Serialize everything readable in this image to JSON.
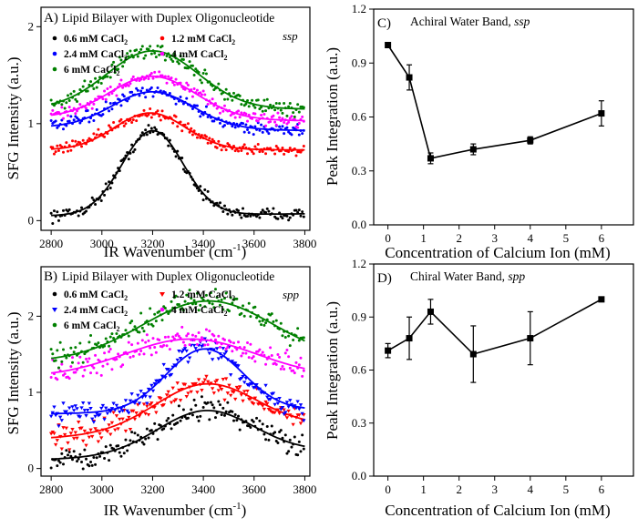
{
  "panels": [
    {
      "id": "A",
      "label": "A)",
      "title": "Lipid Bilayer with Duplex Oligonucleotide",
      "polarization": "ssp",
      "xlabel": "IR Wavenumber (cm",
      "xlabel_sup": "-1",
      "xlabel_tail": ")",
      "ylabel": "SFG Intensity (a.u.)",
      "xticks": [
        "2800",
        "3000",
        "3200",
        "3400",
        "3600",
        "3800"
      ],
      "yticks": [
        "0",
        "1",
        "2"
      ],
      "legend": [
        {
          "text": "0.6 mM CaCl",
          "sub": "2",
          "color": "#000000",
          "marker": "dot"
        },
        {
          "text": "1.2 mM CaCl",
          "sub": "2",
          "color": "#ff0000",
          "marker": "dot"
        },
        {
          "text": "2.4 mM CaCl",
          "sub": "2",
          "color": "#0000ff",
          "marker": "dot"
        },
        {
          "text": "4 mM CaCl",
          "sub": "2",
          "color": "#ff00ff",
          "marker": "dot"
        },
        {
          "text": "6 mM CaCl",
          "sub": "2",
          "color": "#008000",
          "marker": "dot"
        }
      ]
    },
    {
      "id": "B",
      "label": "B)",
      "title": "Lipid Bilayer with Duplex Oligonucleotide",
      "polarization": "spp",
      "xlabel": "IR Wavenumber (cm",
      "xlabel_sup": "-1",
      "xlabel_tail": ")",
      "ylabel": "SFG Intensity (a.u.)",
      "xticks": [
        "2800",
        "3000",
        "3200",
        "3400",
        "3600",
        "3800"
      ],
      "yticks": [
        "0",
        "1",
        "2"
      ],
      "legend": [
        {
          "text": "0.6 mM CaCl",
          "sub": "2",
          "color": "#000000",
          "marker": "dot"
        },
        {
          "text": "1.2 mM CaCl",
          "sub": "2",
          "color": "#ff0000",
          "marker": "tri"
        },
        {
          "text": "2.4 mM CaCl",
          "sub": "2",
          "color": "#0000ff",
          "marker": "tri"
        },
        {
          "text": "4 mM CaCl",
          "sub": "2",
          "color": "#ff00ff",
          "marker": "dot"
        },
        {
          "text": "6 mM CaCl",
          "sub": "2",
          "color": "#008000",
          "marker": "dot"
        }
      ]
    },
    {
      "id": "C",
      "label": "C)",
      "title": "Achiral Water Band,",
      "title_italic": "ssp",
      "xlabel": "Concentration of Calcium Ion (mM)",
      "ylabel": "Peak Integration (a.u.)",
      "xticks": [
        "0",
        "1",
        "2",
        "3",
        "4",
        "5",
        "6"
      ],
      "yticks": [
        "0.0",
        "0.3",
        "0.6",
        "0.9",
        "1.2"
      ]
    },
    {
      "id": "D",
      "label": "D)",
      "title": "Chiral Water Band,",
      "title_italic": "spp",
      "xlabel": "Concentration of Calcium Ion (mM)",
      "ylabel": "Peak Integration (a.u.)",
      "xticks": [
        "0",
        "1",
        "2",
        "3",
        "4",
        "5",
        "6"
      ],
      "yticks": [
        "0.0",
        "0.3",
        "0.6",
        "0.9",
        "1.2"
      ]
    }
  ],
  "chart_data": [
    {
      "panel": "A",
      "type": "scatter",
      "title": "Lipid Bilayer with Duplex Oligonucleotide (ssp)",
      "xlabel": "IR Wavenumber (cm-1)",
      "ylabel": "SFG Intensity (a.u.)",
      "xlim": [
        2760,
        3820
      ],
      "ylim": [
        -0.1,
        2.2
      ],
      "series": [
        {
          "name": "0.6 mM CaCl2",
          "color": "#000000",
          "baseline": 0.0,
          "amplitude": 0.87,
          "center": 3200,
          "width": 120,
          "tail_start": 0.05,
          "tail_end": 0.07,
          "noise": 0.03
        },
        {
          "name": "1.2 mM CaCl2",
          "color": "#ff0000",
          "baseline": 0.68,
          "amplitude": 0.38,
          "center": 3190,
          "width": 140,
          "tail_start": 0.05,
          "tail_end": 0.05,
          "noise": 0.03
        },
        {
          "name": "2.4 mM CaCl2",
          "color": "#0000ff",
          "baseline": 0.93,
          "amplitude": 0.38,
          "center": 3200,
          "width": 160,
          "tail_start": 0.03,
          "tail_end": 0.0,
          "noise": 0.03
        },
        {
          "name": "4 mM CaCl2",
          "color": "#ff00ff",
          "baseline": 1.03,
          "amplitude": 0.44,
          "center": 3200,
          "width": 170,
          "tail_start": 0.03,
          "tail_end": 0.0,
          "noise": 0.03
        },
        {
          "name": "6 mM CaCl2",
          "color": "#008000",
          "baseline": 1.15,
          "amplitude": 0.6,
          "center": 3200,
          "width": 180,
          "tail_start": 0.0,
          "tail_end": 0.0,
          "noise": 0.04
        }
      ]
    },
    {
      "panel": "B",
      "type": "scatter",
      "title": "Lipid Bilayer with Duplex Oligonucleotide (spp)",
      "xlabel": "IR Wavenumber (cm-1)",
      "ylabel": "SFG Intensity (a.u.)",
      "xlim": [
        2760,
        3820
      ],
      "ylim": [
        -0.1,
        2.65
      ],
      "series": [
        {
          "name": "0.6 mM CaCl2",
          "color": "#000000",
          "baseline": 0.12,
          "amplitude": 0.58,
          "center": 3410,
          "width": 190,
          "tail_start": 0.0,
          "tail_end": 0.1,
          "noise": 0.07
        },
        {
          "name": "1.2 mM CaCl2",
          "color": "#ff0000",
          "baseline": 0.4,
          "amplitude": 0.62,
          "center": 3410,
          "width": 200,
          "tail_start": 0.0,
          "tail_end": 0.15,
          "noise": 0.07
        },
        {
          "name": "2.4 mM CaCl2",
          "color": "#0000ff",
          "baseline": 0.72,
          "amplitude": 0.82,
          "center": 3405,
          "width": 150,
          "tail_start": 0.0,
          "tail_end": 0.05,
          "noise": 0.07
        },
        {
          "name": "4 mM CaCl2",
          "color": "#ff00ff",
          "baseline": 1.2,
          "amplitude": 0.5,
          "center": 3350,
          "width": 260,
          "tail_start": 0.0,
          "tail_end": 0.0,
          "noise": 0.07
        },
        {
          "name": "6 mM CaCl2",
          "color": "#008000",
          "baseline": 1.4,
          "amplitude": 0.8,
          "center": 3420,
          "width": 260,
          "tail_start": 0.0,
          "tail_end": 0.0,
          "noise": 0.07
        }
      ]
    },
    {
      "panel": "C",
      "type": "line",
      "title": "Achiral Water Band, ssp",
      "xlabel": "Concentration of Calcium Ion (mM)",
      "ylabel": "Peak Integration (a.u.)",
      "xlim": [
        -0.4,
        6.9
      ],
      "ylim": [
        0,
        1.2
      ],
      "x": [
        0,
        0.6,
        1.2,
        2.4,
        4,
        6
      ],
      "y": [
        1.0,
        0.82,
        0.37,
        0.42,
        0.47,
        0.62
      ],
      "yerr": [
        0.01,
        0.07,
        0.03,
        0.03,
        0.02,
        0.07
      ]
    },
    {
      "panel": "D",
      "type": "line",
      "title": "Chiral Water Band, spp",
      "xlabel": "Concentration of Calcium Ion (mM)",
      "ylabel": "Peak Integration (a.u.)",
      "xlim": [
        -0.4,
        6.9
      ],
      "ylim": [
        0,
        1.2
      ],
      "x": [
        0,
        0.6,
        1.2,
        2.4,
        4,
        6
      ],
      "y": [
        0.71,
        0.78,
        0.93,
        0.69,
        0.78,
        1.0
      ],
      "yerr": [
        0.04,
        0.12,
        0.07,
        0.16,
        0.15,
        0.01
      ]
    }
  ]
}
